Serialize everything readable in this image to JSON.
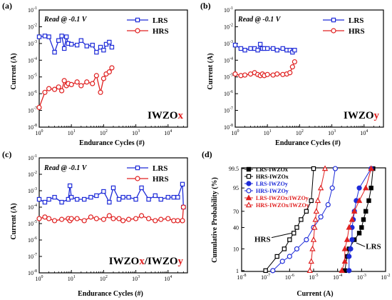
{
  "colors": {
    "lrs": "#1e2bd8",
    "hrs": "#e02020",
    "black": "#000000",
    "red_text": "#e02020"
  },
  "panels": [
    "a",
    "b",
    "c"
  ],
  "labels": {
    "a": "(a)",
    "b": "(b)",
    "c": "(c)",
    "d": "(d)"
  },
  "read_label": "Read @ -0.1 V",
  "endurance_xlabel": "Endurance Cycles (#)",
  "current_ylabel": "Current (A)",
  "prob_ylabel": "Cumulative Probability (%)",
  "prob_xlabel": "Current (A)",
  "annot_hrs": "HRS",
  "annot_lrs": "LRS",
  "sample_names": {
    "a": [
      {
        "t": "IWZO",
        "c": "black"
      },
      {
        "t": "x",
        "c": "red"
      }
    ],
    "b": [
      {
        "t": "IWZO",
        "c": "black"
      },
      {
        "t": "y",
        "c": "red"
      }
    ],
    "c": [
      {
        "t": "IWZO",
        "c": "black"
      },
      {
        "t": "x",
        "c": "red"
      },
      {
        "t": "/IWZO",
        "c": "black"
      },
      {
        "t": "y",
        "c": "red"
      }
    ]
  },
  "chart_data": [
    {
      "panel": "a",
      "type": "line",
      "xlabel": "Endurance Cycles (#)",
      "ylabel": "Current (A)",
      "xscale": "log",
      "yscale": "log",
      "xlim": [
        1,
        40000
      ],
      "ylim": [
        1e-08,
        0.1
      ],
      "xticks": [
        "10^0",
        "10^1",
        "10^2",
        "10^3",
        "10^4"
      ],
      "yticks": [
        "10^-8",
        "10^-7",
        "10^-6",
        "10^-5",
        "10^-4",
        "10^-3",
        "10^-2",
        "10^-1"
      ],
      "legend": "top-right",
      "series": [
        {
          "name": "LRS",
          "color": "#1e2bd8",
          "marker": "square",
          "x": [
            1,
            1.5,
            2,
            3,
            4,
            5,
            6,
            7,
            8,
            10,
            15,
            20,
            30,
            45,
            60,
            80,
            100,
            120,
            150,
            180
          ],
          "y": [
            0.0025,
            0.0028,
            0.0025,
            0.0003,
            0.0015,
            0.0028,
            0.0005,
            0.0025,
            0.001,
            0.0009,
            0.0008,
            0.0015,
            0.0007,
            0.0008,
            0.0003,
            0.0006,
            0.0004,
            0.0009,
            0.0012,
            0.0006
          ]
        },
        {
          "name": "HRS",
          "color": "#e02020",
          "marker": "circle",
          "x": [
            1,
            1.5,
            2,
            3,
            4,
            5,
            6,
            7,
            8,
            10,
            15,
            20,
            30,
            45,
            60,
            80,
            100,
            120,
            150,
            180
          ],
          "y": [
            1.5e-07,
            1.2e-06,
            2e-06,
            1.8e-06,
            2.5e-06,
            1.5e-06,
            6e-06,
            3e-06,
            4e-06,
            3.5e-06,
            5e-06,
            3e-06,
            5e-06,
            4e-06,
            1.2e-05,
            1.2e-06,
            8e-06,
            1.5e-05,
            2e-05,
            3.5e-05
          ]
        }
      ]
    },
    {
      "panel": "b",
      "type": "line",
      "xlabel": "Endurance Cycles (#)",
      "ylabel": "Current (A)",
      "xscale": "log",
      "yscale": "log",
      "xlim": [
        1,
        40000
      ],
      "ylim": [
        1e-08,
        0.1
      ],
      "xticks": [
        "10^0",
        "10^1",
        "10^2",
        "10^3",
        "10^4"
      ],
      "yticks": [
        "10^-8",
        "10^-7",
        "10^-6",
        "10^-5",
        "10^-4",
        "10^-3",
        "10^-2",
        "10^-1"
      ],
      "legend": "top-right",
      "series": [
        {
          "name": "LRS",
          "color": "#1e2bd8",
          "marker": "square",
          "x": [
            1,
            1.5,
            2,
            3,
            4,
            5,
            6,
            7,
            8,
            10,
            15,
            20,
            30,
            40,
            50,
            60,
            70
          ],
          "y": [
            0.0008,
            0.0005,
            0.0004,
            0.0005,
            0.0005,
            0.0004,
            0.0009,
            0.0005,
            0.0005,
            0.0005,
            0.0005,
            0.0004,
            0.0005,
            0.0004,
            0.0004,
            0.0003,
            0.0004
          ]
        },
        {
          "name": "HRS",
          "color": "#e02020",
          "marker": "circle",
          "x": [
            1,
            1.5,
            2,
            3,
            4,
            5,
            6,
            7,
            8,
            10,
            15,
            20,
            30,
            40,
            50,
            60,
            70
          ],
          "y": [
            1.5e-05,
            1.2e-05,
            1.3e-05,
            1.5e-05,
            1.8e-05,
            1.4e-05,
            1.2e-05,
            1.5e-05,
            1.2e-05,
            1.4e-05,
            1.3e-05,
            1.5e-05,
            1.4e-05,
            1.5e-05,
            1.8e-05,
            4e-05,
            8e-05
          ]
        }
      ]
    },
    {
      "panel": "c",
      "type": "line",
      "xlabel": "Endurance Cycles (#)",
      "ylabel": "Current (A)",
      "xscale": "log",
      "yscale": "log",
      "xlim": [
        1,
        40000
      ],
      "ylim": [
        1e-08,
        0.1
      ],
      "xticks": [
        "10^0",
        "10^1",
        "10^2",
        "10^3",
        "10^4"
      ],
      "yticks": [
        "10^-8",
        "10^-7",
        "10^-6",
        "10^-5",
        "10^-4",
        "10^-3",
        "10^-2",
        "10^-1"
      ],
      "legend": "top-right",
      "series": [
        {
          "name": "LRS",
          "color": "#1e2bd8",
          "marker": "square",
          "x": [
            1,
            1.5,
            2,
            3,
            5,
            8,
            9,
            10,
            15,
            25,
            40,
            60,
            100,
            150,
            200,
            300,
            400,
            600,
            1000,
            1500,
            2500,
            4000,
            6000,
            10000,
            15000,
            20000,
            28000,
            30000
          ],
          "y": [
            0.0003,
            0.0002,
            0.0003,
            0.0004,
            0.0002,
            0.0003,
            0.002,
            0.0004,
            0.0003,
            0.0003,
            0.0004,
            0.0005,
            0.0009,
            0.0002,
            0.0015,
            0.0003,
            0.0004,
            0.0004,
            0.0003,
            0.0015,
            0.0003,
            0.0005,
            0.0003,
            0.0004,
            0.0004,
            0.0004,
            0.0025,
            0.0001
          ]
        },
        {
          "name": "HRS",
          "color": "#e02020",
          "marker": "circle",
          "x": [
            1,
            1.5,
            2,
            3,
            5,
            8,
            9,
            10,
            15,
            25,
            40,
            60,
            100,
            150,
            200,
            300,
            400,
            600,
            1000,
            1500,
            2500,
            4000,
            6000,
            10000,
            15000,
            20000,
            28000,
            30000
          ],
          "y": [
            2e-05,
            2.5e-05,
            2e-05,
            1.5e-05,
            1.8e-05,
            2e-05,
            1.5e-05,
            2e-05,
            2e-05,
            1.5e-05,
            2.5e-05,
            2e-05,
            1.8e-05,
            3e-05,
            2e-05,
            2e-05,
            1.5e-05,
            1.8e-05,
            2e-05,
            3e-05,
            2e-05,
            1.5e-05,
            1.8e-05,
            2e-05,
            1.5e-05,
            1.5e-05,
            1.5e-05,
            0.0001
          ]
        }
      ]
    },
    {
      "panel": "d",
      "type": "scatter",
      "xlabel": "Current (A)",
      "ylabel": "Cumulative Probability (%)",
      "xscale": "log",
      "yscale": "probability",
      "xlim": [
        1e-08,
        0.01
      ],
      "xticks": [
        "10^-8",
        "10^-7",
        "10^-6",
        "10^-5",
        "10^-4",
        "10^-3",
        "10^-2"
      ],
      "yticks": [
        "1",
        "10",
        "40",
        "70",
        "95",
        "99.5"
      ],
      "legend": "top-left",
      "series": [
        {
          "name": "LRS-IWZOx",
          "color": "#000000",
          "marker": "square-filled",
          "x": [
            0.0002,
            0.00025,
            0.0003,
            0.0005,
            0.0008,
            0.001,
            0.0012,
            0.0015,
            0.002,
            0.0025,
            0.003
          ],
          "y": [
            1,
            5,
            10,
            20,
            30,
            40,
            55,
            70,
            85,
            95,
            99.5
          ]
        },
        {
          "name": "HRS-IWZOx",
          "color": "#000000",
          "marker": "square-open",
          "x": [
            1e-07,
            3e-07,
            6e-07,
            1e-06,
            1.5e-06,
            2e-06,
            3e-06,
            5e-06,
            8e-06,
            1e-05
          ],
          "y": [
            1,
            5,
            10,
            20,
            30,
            40,
            55,
            70,
            85,
            99.5
          ]
        },
        {
          "name": "LRS-IWZOy",
          "color": "#1e2bd8",
          "marker": "circle-filled",
          "x": [
            0.0003,
            0.0003,
            0.00035,
            0.0004,
            0.0004,
            0.00045,
            0.0005,
            0.0006,
            0.0008,
            0.0025
          ],
          "y": [
            1,
            5,
            10,
            20,
            40,
            55,
            70,
            85,
            95,
            99.5
          ]
        },
        {
          "name": "HRS-IWZOy",
          "color": "#1e2bd8",
          "marker": "circle-open",
          "x": [
            2e-07,
            5e-07,
            1e-06,
            2e-06,
            5e-06,
            1e-05,
            2e-05,
            4e-05,
            6e-05,
            8e-05
          ],
          "y": [
            1,
            3,
            5,
            10,
            20,
            40,
            60,
            80,
            95,
            99.5
          ]
        },
        {
          "name": "LRS-IWZOx/IWZOy",
          "color": "#e02020",
          "marker": "triangle-filled",
          "x": [
            0.00015,
            0.0002,
            0.0002,
            0.00025,
            0.0003,
            0.0004,
            0.0005,
            0.0008,
            0.0015,
            0.0025
          ],
          "y": [
            1,
            3,
            10,
            20,
            40,
            55,
            70,
            85,
            95,
            99.5
          ]
        },
        {
          "name": "HRS-IWZOx/IWZOy",
          "color": "#e02020",
          "marker": "triangle-open",
          "x": [
            7e-06,
            8e-06,
            9e-06,
            1e-05,
            1.1e-05,
            1.2e-05,
            1.3e-05,
            1.5e-05,
            2e-05,
            3e-05
          ],
          "y": [
            1,
            3,
            10,
            20,
            40,
            55,
            70,
            85,
            95,
            99.5
          ]
        }
      ]
    }
  ]
}
